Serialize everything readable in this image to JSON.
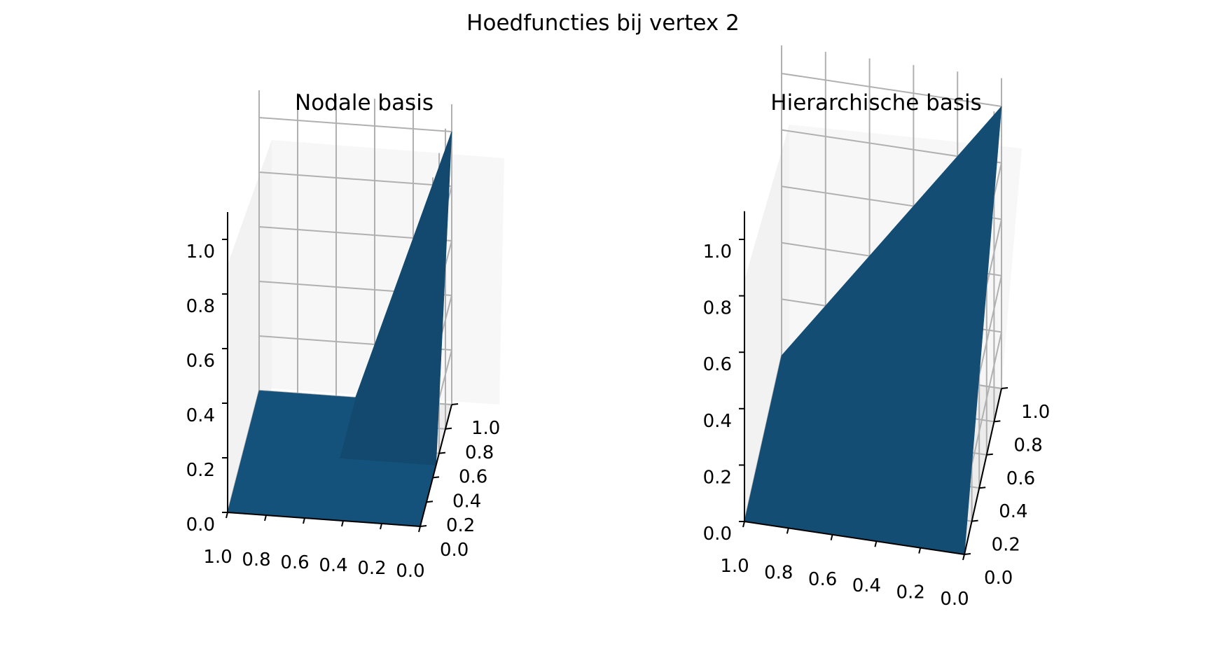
{
  "figure": {
    "suptitle": "Hoedfuncties bij vertex 2"
  },
  "chart_data": [
    {
      "type": "surface",
      "title": "Nodale basis",
      "xlabel": "",
      "ylabel": "",
      "zlabel": "",
      "x_ticks": [
        "1.0",
        "0.8",
        "0.6",
        "0.4",
        "0.2",
        "0.0"
      ],
      "y_ticks": [
        "0.0",
        "0.2",
        "0.4",
        "0.6",
        "0.8",
        "1.0"
      ],
      "z_ticks": [
        "0.0",
        "0.2",
        "0.4",
        "0.6",
        "0.8",
        "1.0"
      ],
      "xlim": [
        0,
        1
      ],
      "ylim": [
        0,
        1
      ],
      "zlim": [
        0,
        1
      ],
      "grid": true,
      "color": "#1f77b4",
      "vertices": [
        {
          "x": 0,
          "y": 0,
          "z": 0
        },
        {
          "x": 1,
          "y": 0,
          "z": 0
        },
        {
          "x": 1,
          "y": 1,
          "z": 0
        },
        {
          "x": 0,
          "y": 1,
          "z": 1
        },
        {
          "x": 0.5,
          "y": 0.5,
          "z": 0
        },
        {
          "x": 0.5,
          "y": 0,
          "z": 0
        },
        {
          "x": 1,
          "y": 0.5,
          "z": 0
        },
        {
          "x": 0.5,
          "y": 1,
          "z": 0
        },
        {
          "x": 0,
          "y": 0.5,
          "z": 0
        }
      ],
      "triangles": [
        [
          0,
          5,
          4
        ],
        [
          5,
          1,
          4
        ],
        [
          1,
          6,
          4
        ],
        [
          6,
          2,
          4
        ],
        [
          2,
          7,
          4
        ],
        [
          7,
          3,
          4
        ],
        [
          3,
          8,
          4
        ],
        [
          8,
          0,
          4
        ]
      ]
    },
    {
      "type": "surface",
      "title": "Hierarchische basis",
      "xlabel": "",
      "ylabel": "",
      "zlabel": "",
      "x_ticks": [
        "1.0",
        "0.8",
        "0.6",
        "0.4",
        "0.2",
        "0.0"
      ],
      "y_ticks": [
        "0.0",
        "0.2",
        "0.4",
        "0.6",
        "0.8",
        "1.0"
      ],
      "z_ticks": [
        "0.0",
        "0.2",
        "0.4",
        "0.6",
        "0.8",
        "1.0"
      ],
      "xlim": [
        0,
        1
      ],
      "ylim": [
        0,
        1
      ],
      "zlim": [
        0,
        1
      ],
      "grid": true,
      "color": "#1f77b4",
      "vertices": [
        {
          "x": 0,
          "y": 0,
          "z": 0
        },
        {
          "x": 1,
          "y": 0,
          "z": 0
        },
        {
          "x": 1,
          "y": 1,
          "z": 0
        },
        {
          "x": 0,
          "y": 1,
          "z": 1
        },
        {
          "x": 0.5,
          "y": 0.5,
          "z": 0.5
        },
        {
          "x": 0.5,
          "y": 0,
          "z": 0
        },
        {
          "x": 1,
          "y": 0.5,
          "z": 0
        },
        {
          "x": 0.5,
          "y": 1,
          "z": 0.5
        },
        {
          "x": 0,
          "y": 0.5,
          "z": 0.5
        }
      ],
      "triangles": [
        [
          0,
          5,
          4
        ],
        [
          5,
          1,
          4
        ],
        [
          1,
          6,
          4
        ],
        [
          6,
          2,
          4
        ],
        [
          2,
          7,
          4
        ],
        [
          7,
          3,
          4
        ],
        [
          3,
          8,
          4
        ],
        [
          8,
          0,
          4
        ]
      ]
    }
  ]
}
